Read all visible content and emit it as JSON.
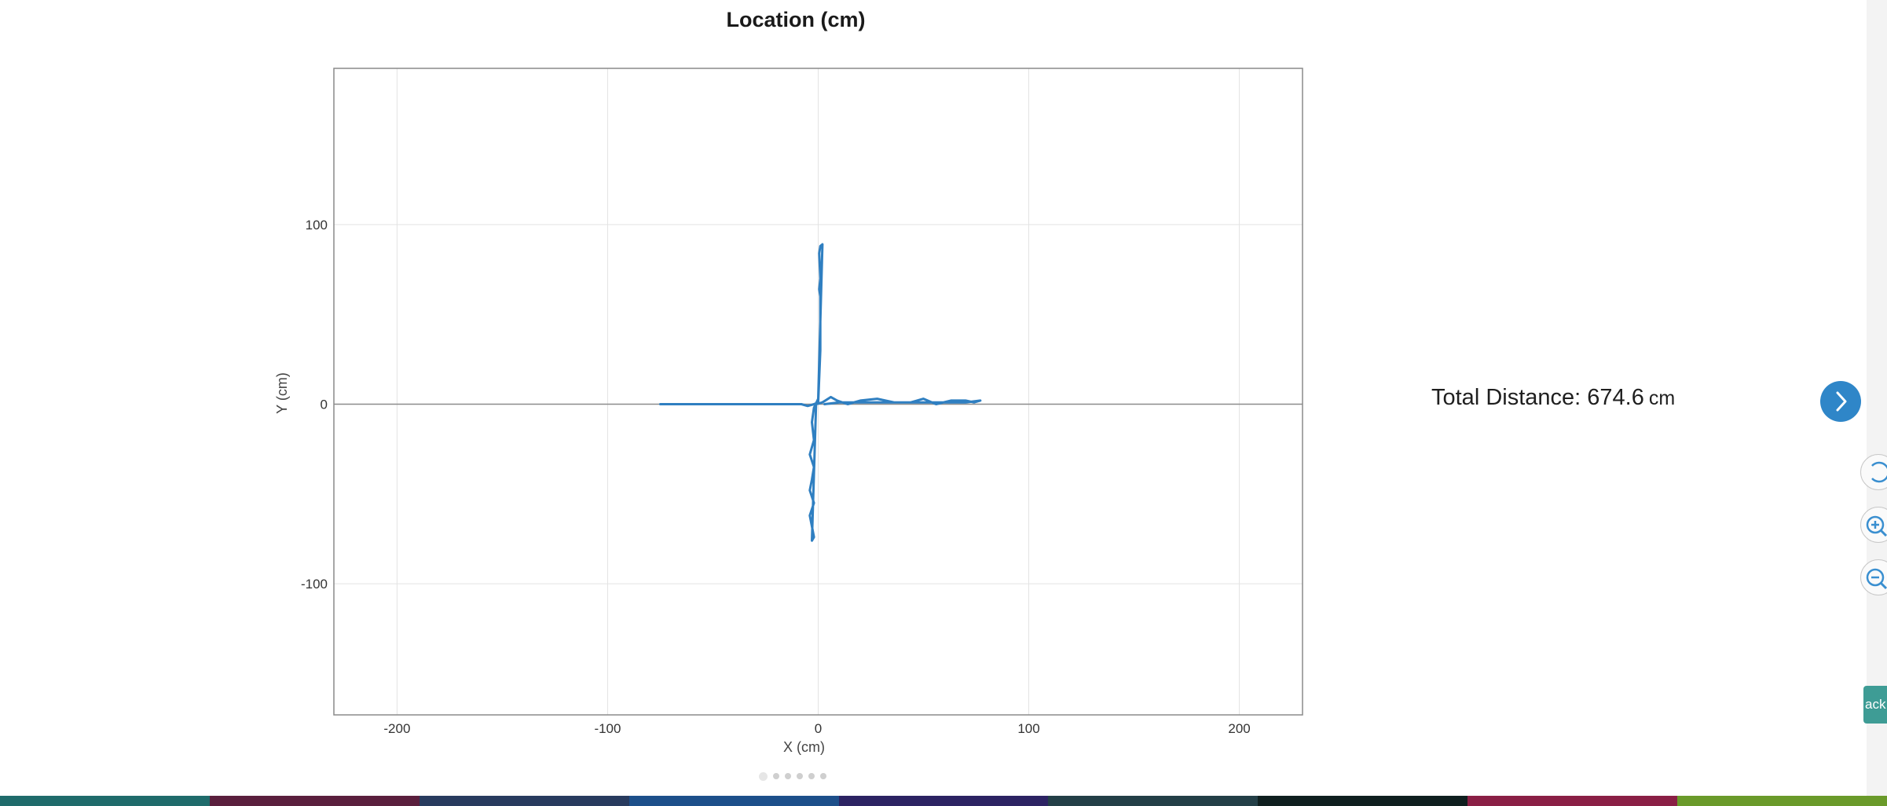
{
  "chart_data": {
    "type": "line",
    "title": "Location (cm)",
    "xlabel": "X (cm)",
    "ylabel": "Y (cm)",
    "xlim": [
      -230,
      230
    ],
    "ylim": [
      -173,
      187
    ],
    "xticks": [
      -200,
      -100,
      0,
      100,
      200
    ],
    "yticks": [
      -100,
      0,
      100
    ],
    "grid": true,
    "series": [
      {
        "color": "#2f7fc1",
        "x": [
          -75,
          -40,
          -15,
          -8,
          -5,
          -2,
          0,
          1,
          1,
          0.5,
          1,
          0.5,
          1,
          2,
          0,
          -2,
          -3,
          -2,
          -4,
          -2,
          -3,
          -4,
          -2,
          -4,
          -3,
          -2,
          -3,
          -1,
          2,
          6,
          9,
          14,
          20,
          28,
          36,
          44,
          50,
          56,
          63,
          70,
          74,
          77,
          70,
          60,
          50,
          40,
          30,
          20,
          10,
          3
        ],
        "y": [
          0,
          0,
          0,
          0,
          -1,
          0,
          1,
          30,
          60,
          64,
          70,
          84,
          88,
          89,
          3,
          -2,
          -10,
          -20,
          -28,
          -35,
          -42,
          -48,
          -55,
          -62,
          -68,
          -74,
          -76,
          0,
          1,
          4,
          2,
          0,
          2,
          3,
          1,
          1,
          3,
          0,
          2,
          2,
          1,
          2,
          1,
          1,
          1,
          1,
          1,
          1,
          1,
          0
        ]
      }
    ]
  },
  "stats": {
    "total_label": "Total Distance:",
    "total_value": "674.6",
    "total_unit": "cm"
  },
  "controls": {
    "next_icon": "chevron-right-icon",
    "side_tools": [
      "reset-icon",
      "zoom-in-icon",
      "zoom-out-icon"
    ],
    "side_tab_text": "ack"
  },
  "pager": {
    "count": 6,
    "active": 0
  },
  "taskbar_colors": [
    "#1f6b6b",
    "#5a1f3d",
    "#283b5e",
    "#1d4f8a",
    "#2c2363",
    "#233f47",
    "#0f1f1f",
    "#8a1f45",
    "#6a9a2a"
  ]
}
